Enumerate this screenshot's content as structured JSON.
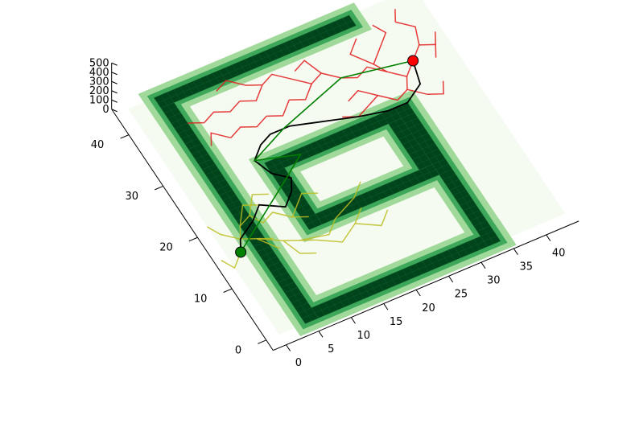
{
  "chart_data": {
    "type": "scatter",
    "projection": "3d-surface-view",
    "axes": {
      "x": {
        "ticks": [
          0,
          5,
          10,
          15,
          20,
          25,
          30,
          35,
          40
        ],
        "range": [
          -2,
          45
        ]
      },
      "y": {
        "ticks": [
          0,
          10,
          20,
          30,
          40
        ],
        "range": [
          -2,
          45
        ]
      },
      "z": {
        "ticks": [
          0,
          100,
          200,
          300,
          400,
          500
        ],
        "range": [
          0,
          500
        ]
      }
    },
    "grid": false,
    "colors": {
      "wall": "#00441b",
      "wall_edge": "#3ea85a",
      "wall_halo": "#a1d99b",
      "floor": "#f5fbf1",
      "start_marker": "#008000",
      "goal_marker": "#ff0000",
      "forward_tree": "#bcbd22",
      "backward_tree": "#e31a1c",
      "path": "#000000",
      "shortcut": "#008000"
    },
    "floor_extent": {
      "x": [
        0,
        44
      ],
      "y": [
        0,
        44
      ]
    },
    "walls": [
      {
        "x": [
          4,
          34
        ],
        "y": [
          0,
          2
        ]
      },
      {
        "x": [
          4,
          6
        ],
        "y": [
          0,
          44
        ]
      },
      {
        "x": [
          4,
          34
        ],
        "y": [
          42,
          44
        ]
      },
      {
        "x": [
          32,
          34
        ],
        "y": [
          0,
          27
        ]
      },
      {
        "x": [
          12,
          32
        ],
        "y": [
          25,
          27
        ]
      },
      {
        "x": [
          12,
          14
        ],
        "y": [
          14,
          27
        ]
      },
      {
        "x": [
          14,
          32
        ],
        "y": [
          14,
          16
        ]
      },
      {
        "x": [
          30,
          32
        ],
        "y": [
          16,
          25
        ]
      }
    ],
    "start_point": {
      "x": 2,
      "y": 15
    },
    "goal_point": {
      "x": 38,
      "y": 33
    },
    "series": [
      {
        "kind": "forward-tree",
        "segments": [
          [
            [
              2,
              15
            ],
            [
              3,
              17
            ],
            [
              5,
              16
            ],
            [
              7,
              15
            ]
          ],
          [
            [
              3,
              17
            ],
            [
              4,
              19
            ],
            [
              6,
              20
            ],
            [
              7,
              18
            ]
          ],
          [
            [
              5,
              16
            ],
            [
              8,
              14
            ],
            [
              10,
              13
            ],
            [
              12,
              12
            ]
          ],
          [
            [
              4,
              19
            ],
            [
              6,
              22
            ],
            [
              8,
              21
            ]
          ],
          [
            [
              7,
              18
            ],
            [
              9,
              19
            ],
            [
              11,
              17
            ],
            [
              13,
              16
            ]
          ],
          [
            [
              10,
              13
            ],
            [
              14,
              12
            ],
            [
              16,
              14
            ]
          ],
          [
            [
              2,
              15
            ],
            [
              0,
              13
            ],
            [
              -1,
              15
            ]
          ],
          [
            [
              3,
              17
            ],
            [
              1,
              19
            ],
            [
              0,
              21
            ]
          ],
          [
            [
              8,
              14
            ],
            [
              9,
              11
            ],
            [
              11,
              10
            ]
          ],
          [
            [
              12,
              12
            ],
            [
              15,
              10
            ],
            [
              18,
              12
            ],
            [
              20,
              14
            ]
          ],
          [
            [
              18,
              12
            ],
            [
              21,
              10
            ],
            [
              23,
              12
            ]
          ],
          [
            [
              6,
              20
            ],
            [
              8,
              23
            ],
            [
              10,
              22
            ]
          ],
          [
            [
              11,
              17
            ],
            [
              14,
              20
            ],
            [
              16,
              19
            ]
          ],
          [
            [
              16,
              14
            ],
            [
              20,
              16
            ],
            [
              22,
              18
            ]
          ],
          [
            [
              5,
              16
            ],
            [
              7,
              13
            ]
          ]
        ]
      },
      {
        "kind": "backward-tree",
        "segments": [
          [
            [
              38,
              33
            ],
            [
              36,
              31
            ],
            [
              35,
              29
            ],
            [
              37,
              27
            ]
          ],
          [
            [
              38,
              33
            ],
            [
              40,
              35
            ],
            [
              42,
              34
            ],
            [
              41,
              32
            ]
          ],
          [
            [
              36,
              31
            ],
            [
              34,
              33
            ],
            [
              33,
              35
            ],
            [
              35,
              37
            ]
          ],
          [
            [
              35,
              29
            ],
            [
              33,
              28
            ],
            [
              31,
              30
            ],
            [
              29,
              29
            ]
          ],
          [
            [
              40,
              35
            ],
            [
              41,
              38
            ],
            [
              39,
              40
            ]
          ],
          [
            [
              34,
              33
            ],
            [
              32,
              35
            ],
            [
              30,
              34
            ],
            [
              28,
              35
            ]
          ],
          [
            [
              31,
              30
            ],
            [
              29,
              32
            ],
            [
              27,
              31
            ]
          ],
          [
            [
              33,
              35
            ],
            [
              31,
              38
            ],
            [
              33,
              40
            ]
          ],
          [
            [
              28,
              35
            ],
            [
              26,
              37
            ],
            [
              24,
              36
            ],
            [
              22,
              38
            ]
          ],
          [
            [
              29,
              29
            ],
            [
              27,
              28
            ],
            [
              25,
              29
            ]
          ],
          [
            [
              37,
              27
            ],
            [
              39,
              26
            ],
            [
              40,
              28
            ]
          ],
          [
            [
              42,
              34
            ],
            [
              43,
              36
            ]
          ],
          [
            [
              26,
              37
            ],
            [
              25,
              40
            ],
            [
              23,
              39
            ]
          ],
          [
            [
              24,
              36
            ],
            [
              22,
              34
            ],
            [
              20,
              35
            ]
          ],
          [
            [
              22,
              38
            ],
            [
              20,
              40
            ],
            [
              18,
              39
            ],
            [
              16,
              40
            ]
          ],
          [
            [
              20,
              35
            ],
            [
              18,
              33
            ],
            [
              16,
              34
            ]
          ],
          [
            [
              35,
              37
            ],
            [
              37,
              39
            ],
            [
              36,
              41
            ]
          ],
          [
            [
              18,
              39
            ],
            [
              16,
              37
            ],
            [
              14,
              38
            ]
          ],
          [
            [
              16,
              40
            ],
            [
              14,
              42
            ],
            [
              12,
              41
            ]
          ],
          [
            [
              16,
              34
            ],
            [
              14,
              33
            ],
            [
              12,
              34
            ],
            [
              10,
              33
            ]
          ],
          [
            [
              14,
              38
            ],
            [
              12,
              37
            ],
            [
              10,
              38
            ],
            [
              8,
              37
            ]
          ],
          [
            [
              10,
              33
            ],
            [
              8,
              35
            ],
            [
              7,
              33
            ]
          ],
          [
            [
              8,
              37
            ],
            [
              6,
              38
            ]
          ],
          [
            [
              39,
              40
            ],
            [
              40,
              42
            ]
          ]
        ]
      },
      {
        "kind": "solution-path",
        "points": [
          [
            2,
            15
          ],
          [
            3,
            17
          ],
          [
            6,
            19
          ],
          [
            8,
            21
          ],
          [
            11,
            19
          ],
          [
            13,
            21
          ],
          [
            14,
            23
          ],
          [
            12,
            25
          ],
          [
            11,
            28
          ],
          [
            13,
            30
          ],
          [
            15,
            31
          ],
          [
            18,
            31
          ],
          [
            21,
            30
          ],
          [
            24,
            29
          ],
          [
            27,
            28
          ],
          [
            31,
            27
          ],
          [
            34,
            27
          ],
          [
            37,
            29
          ],
          [
            38,
            33
          ]
        ]
      },
      {
        "kind": "shortcut-path",
        "points": [
          [
            2,
            15
          ],
          [
            13,
            23
          ],
          [
            17,
            26
          ],
          [
            11,
            28
          ],
          [
            17,
            31
          ],
          [
            28,
            35
          ],
          [
            38,
            33
          ]
        ]
      }
    ]
  }
}
